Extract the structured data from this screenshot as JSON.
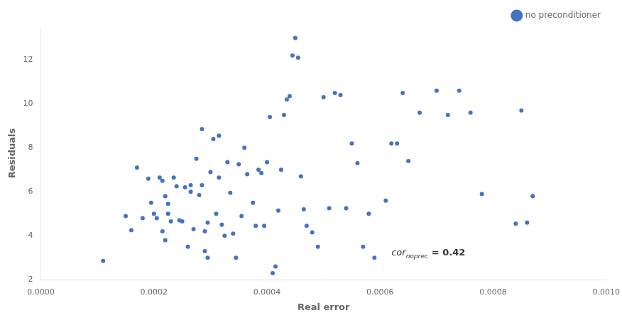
{
  "chart_data": {
    "type": "scatter",
    "xlabel": "Real error",
    "ylabel": "Residuals",
    "xlim": [
      0.0,
      0.001
    ],
    "ylim": [
      2,
      13.5
    ],
    "xticks": [
      {
        "value": 0.0,
        "label": "0.0000"
      },
      {
        "value": 0.0002,
        "label": "0.0002"
      },
      {
        "value": 0.0004,
        "label": "0.0004"
      },
      {
        "value": 0.0006,
        "label": "0.0006"
      },
      {
        "value": 0.0008,
        "label": "0.0008"
      },
      {
        "value": 0.001,
        "label": "0.0010"
      }
    ],
    "yticks": [
      2,
      4,
      6,
      8,
      10,
      12
    ],
    "grid": false,
    "legend": "upper right",
    "x": [
      0.00011,
      0.00015,
      0.00016,
      0.00017,
      0.00018,
      0.00019,
      0.000195,
      0.0002,
      0.000205,
      0.00021,
      0.000215,
      0.000215,
      0.00022,
      0.00022,
      0.000225,
      0.000225,
      0.00023,
      0.000235,
      0.00024,
      0.000245,
      0.00025,
      0.000255,
      0.00026,
      0.000265,
      0.000265,
      0.00027,
      0.000275,
      0.00028,
      0.000285,
      0.000285,
      0.00029,
      0.00029,
      0.000295,
      0.000295,
      0.0003,
      0.000305,
      0.00031,
      0.000315,
      0.000315,
      0.00032,
      0.000325,
      0.00033,
      0.000335,
      0.00034,
      0.000345,
      0.00035,
      0.000355,
      0.00036,
      0.000365,
      0.000375,
      0.00038,
      0.000385,
      0.00039,
      0.000395,
      0.0004,
      0.000405,
      0.00041,
      0.000415,
      0.00042,
      0.000425,
      0.00043,
      0.000435,
      0.00044,
      0.000445,
      0.00045,
      0.000455,
      0.00046,
      0.000465,
      0.00047,
      0.00048,
      0.00049,
      0.0005,
      0.00051,
      0.00052,
      0.00053,
      0.00054,
      0.00055,
      0.00056,
      0.00057,
      0.00058,
      0.00059,
      0.00061,
      0.00062,
      0.00063,
      0.00064,
      0.00065,
      0.00067,
      0.0007,
      0.00072,
      0.00074,
      0.00076,
      0.00078,
      0.00084,
      0.00085,
      0.00086,
      0.00087
    ],
    "series": [
      {
        "name": "no preconditioner",
        "color": "#4472c4",
        "marker": "circle",
        "values": [
          2.85,
          4.9,
          4.25,
          7.1,
          4.8,
          6.6,
          5.5,
          5.0,
          4.8,
          6.65,
          4.2,
          6.5,
          5.8,
          3.8,
          5.0,
          5.45,
          4.65,
          6.65,
          6.25,
          4.7,
          4.65,
          6.2,
          3.5,
          6.3,
          6.0,
          4.3,
          7.5,
          5.85,
          8.85,
          6.3,
          4.2,
          3.3,
          3.0,
          4.6,
          6.9,
          8.4,
          5.0,
          8.55,
          6.65,
          4.5,
          4.0,
          7.35,
          5.95,
          4.1,
          3.0,
          7.25,
          4.9,
          8.0,
          6.8,
          5.5,
          4.45,
          7.0,
          6.85,
          4.45,
          7.35,
          9.4,
          2.3,
          2.6,
          5.15,
          7.0,
          9.5,
          10.2,
          10.35,
          12.2,
          13.0,
          12.1,
          6.7,
          5.2,
          4.45,
          4.15,
          3.5,
          10.3,
          5.25,
          10.5,
          10.4,
          5.25,
          8.2,
          7.3,
          3.5,
          5.0,
          3.0,
          5.6,
          8.2,
          8.2,
          10.5,
          7.4,
          9.6,
          10.6,
          9.5,
          10.6,
          9.6,
          5.9,
          4.55,
          9.7,
          4.6,
          5.8
        ]
      }
    ],
    "annotations": [
      {
        "x": 0.00062,
        "y": 3.1,
        "text": "cor",
        "subscript": "noprec",
        "suffix": "= 0.42"
      }
    ]
  }
}
